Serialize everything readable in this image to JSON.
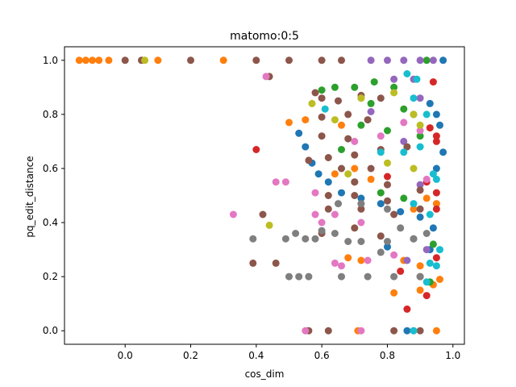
{
  "chart_data": {
    "type": "scatter",
    "title": "matomo:0:5",
    "xlabel": "cos_dim",
    "ylabel": "pq_edit_distance",
    "xlim": [
      -0.185,
      1.035
    ],
    "ylim": [
      -0.05,
      1.05
    ],
    "xticks": [
      0.0,
      0.2,
      0.4,
      0.6,
      0.8,
      1.0
    ],
    "xtick_labels": [
      "0.0",
      "0.2",
      "0.4",
      "0.6",
      "0.8",
      "1.0"
    ],
    "yticks": [
      0.0,
      0.2,
      0.4,
      0.6,
      0.8,
      1.0
    ],
    "ytick_labels": [
      "0.0",
      "0.2",
      "0.4",
      "0.6",
      "0.8",
      "1.0"
    ],
    "grid": false,
    "legend": "none",
    "palette": [
      "#1f77b4",
      "#ff7f0e",
      "#2ca02c",
      "#d62728",
      "#9467bd",
      "#8c564b",
      "#e377c2",
      "#7f7f7f",
      "#bcbd22",
      "#17becf"
    ],
    "series": [
      {
        "color": "#1f77b4",
        "points": [
          [
            0.97,
            1.0
          ],
          [
            0.93,
            0.84
          ],
          [
            0.95,
            0.8
          ],
          [
            0.96,
            0.76
          ],
          [
            0.97,
            0.66
          ],
          [
            0.95,
            0.6
          ],
          [
            0.53,
            0.73
          ],
          [
            0.55,
            0.68
          ],
          [
            0.57,
            0.62
          ],
          [
            0.59,
            0.58
          ],
          [
            0.62,
            0.55
          ],
          [
            0.66,
            0.51
          ],
          [
            0.72,
            0.49
          ],
          [
            0.78,
            0.47
          ],
          [
            0.84,
            0.44
          ],
          [
            0.9,
            0.42
          ],
          [
            0.94,
            0.38
          ],
          [
            0.88,
            0.34
          ],
          [
            0.8,
            0.31
          ],
          [
            0.93,
            0.3
          ],
          [
            0.86,
            0.0
          ]
        ]
      },
      {
        "color": "#ff7f0e",
        "points": [
          [
            -0.14,
            1.0
          ],
          [
            -0.12,
            1.0
          ],
          [
            -0.1,
            1.0
          ],
          [
            -0.08,
            1.0
          ],
          [
            -0.05,
            1.0
          ],
          [
            0.1,
            1.0
          ],
          [
            0.3,
            1.0
          ],
          [
            0.55,
            0.78
          ],
          [
            0.5,
            0.77
          ],
          [
            0.66,
            0.76
          ],
          [
            0.7,
            0.6
          ],
          [
            0.64,
            0.58
          ],
          [
            0.75,
            0.56
          ],
          [
            0.92,
            0.49
          ],
          [
            0.95,
            0.47
          ],
          [
            0.88,
            0.45
          ],
          [
            0.68,
            0.27
          ],
          [
            0.72,
            0.26
          ],
          [
            0.85,
            0.26
          ],
          [
            0.9,
            0.24
          ],
          [
            0.96,
            0.19
          ],
          [
            0.94,
            0.17
          ],
          [
            0.82,
            0.14
          ],
          [
            0.9,
            0.15
          ],
          [
            0.71,
            0.0
          ],
          [
            0.95,
            0.0
          ]
        ]
      },
      {
        "color": "#2ca02c",
        "points": [
          [
            0.92,
            1.0
          ],
          [
            0.6,
            0.89
          ],
          [
            0.64,
            0.9
          ],
          [
            0.7,
            0.9
          ],
          [
            0.76,
            0.92
          ],
          [
            0.82,
            0.9
          ],
          [
            0.75,
            0.84
          ],
          [
            0.85,
            0.82
          ],
          [
            0.88,
            0.8
          ],
          [
            0.72,
            0.76
          ],
          [
            0.8,
            0.74
          ],
          [
            0.9,
            0.72
          ],
          [
            0.66,
            0.67
          ],
          [
            0.7,
            0.55
          ],
          [
            0.78,
            0.51
          ],
          [
            0.85,
            0.49
          ],
          [
            0.93,
            0.18
          ],
          [
            0.94,
            0.32
          ]
        ]
      },
      {
        "color": "#d62728",
        "points": [
          [
            0.4,
            0.67
          ],
          [
            0.94,
            0.92
          ],
          [
            0.93,
            0.75
          ],
          [
            0.95,
            0.72
          ],
          [
            0.95,
            0.7
          ],
          [
            0.8,
            0.57
          ],
          [
            0.92,
            0.55
          ],
          [
            0.95,
            0.51
          ],
          [
            0.95,
            0.45
          ],
          [
            0.84,
            0.22
          ],
          [
            0.9,
            0.2
          ],
          [
            0.92,
            0.13
          ],
          [
            0.86,
            0.08
          ],
          [
            0.95,
            0.27
          ]
        ]
      },
      {
        "color": "#9467bd",
        "points": [
          [
            0.75,
            1.0
          ],
          [
            0.8,
            1.0
          ],
          [
            0.85,
            1.0
          ],
          [
            0.9,
            1.0
          ],
          [
            0.94,
            1.0
          ],
          [
            0.82,
            0.93
          ],
          [
            0.88,
            0.93
          ],
          [
            0.9,
            0.86
          ],
          [
            0.75,
            0.81
          ],
          [
            0.85,
            0.7
          ],
          [
            0.9,
            0.54
          ],
          [
            0.92,
            0.3
          ],
          [
            0.86,
            0.26
          ]
        ]
      },
      {
        "color": "#8c564b",
        "points": [
          [
            0.0,
            1.0
          ],
          [
            0.05,
            1.0
          ],
          [
            0.2,
            1.0
          ],
          [
            0.4,
            1.0
          ],
          [
            0.5,
            1.0
          ],
          [
            0.6,
            1.0
          ],
          [
            0.66,
            1.0
          ],
          [
            0.44,
            0.94
          ],
          [
            0.58,
            0.88
          ],
          [
            0.6,
            0.86
          ],
          [
            0.65,
            0.85
          ],
          [
            0.72,
            0.87
          ],
          [
            0.78,
            0.86
          ],
          [
            0.6,
            0.79
          ],
          [
            0.68,
            0.8
          ],
          [
            0.74,
            0.78
          ],
          [
            0.6,
            0.72
          ],
          [
            0.68,
            0.71
          ],
          [
            0.62,
            0.64
          ],
          [
            0.7,
            0.65
          ],
          [
            0.78,
            0.67
          ],
          [
            0.86,
            0.68
          ],
          [
            0.56,
            0.63
          ],
          [
            0.66,
            0.6
          ],
          [
            0.75,
            0.6
          ],
          [
            0.7,
            0.55
          ],
          [
            0.8,
            0.54
          ],
          [
            0.9,
            0.52
          ],
          [
            0.62,
            0.5
          ],
          [
            0.7,
            0.5
          ],
          [
            0.8,
            0.48
          ],
          [
            0.9,
            0.45
          ],
          [
            0.62,
            0.45
          ],
          [
            0.72,
            0.45
          ],
          [
            0.82,
            0.43
          ],
          [
            0.42,
            0.43
          ],
          [
            0.39,
            0.25
          ],
          [
            0.46,
            0.25
          ],
          [
            0.6,
            0.36
          ],
          [
            0.7,
            0.38
          ],
          [
            0.78,
            0.35
          ],
          [
            0.56,
            0.0
          ],
          [
            0.62,
            0.0
          ],
          [
            0.82,
            0.0
          ],
          [
            0.9,
            0.0
          ]
        ]
      },
      {
        "color": "#e377c2",
        "points": [
          [
            0.43,
            0.94
          ],
          [
            0.33,
            0.43
          ],
          [
            0.46,
            0.55
          ],
          [
            0.49,
            0.55
          ],
          [
            0.58,
            0.43
          ],
          [
            0.64,
            0.43
          ],
          [
            0.6,
            0.4
          ],
          [
            0.72,
            0.4
          ],
          [
            0.64,
            0.25
          ],
          [
            0.66,
            0.24
          ],
          [
            0.74,
            0.26
          ],
          [
            0.82,
            0.28
          ],
          [
            0.7,
            0.7
          ],
          [
            0.78,
            0.72
          ],
          [
            0.85,
            0.77
          ],
          [
            0.9,
            0.74
          ],
          [
            0.72,
            0.86
          ],
          [
            0.92,
            0.56
          ],
          [
            0.58,
            0.51
          ],
          [
            0.55,
            0.0
          ],
          [
            0.72,
            0.0
          ],
          [
            0.88,
            0.0
          ]
        ]
      },
      {
        "color": "#7f7f7f",
        "points": [
          [
            0.39,
            0.34
          ],
          [
            0.49,
            0.34
          ],
          [
            0.5,
            0.2
          ],
          [
            0.53,
            0.2
          ],
          [
            0.56,
            0.2
          ],
          [
            0.55,
            0.34
          ],
          [
            0.58,
            0.34
          ],
          [
            0.52,
            0.36
          ],
          [
            0.6,
            0.37
          ],
          [
            0.64,
            0.36
          ],
          [
            0.68,
            0.33
          ],
          [
            0.72,
            0.33
          ],
          [
            0.8,
            0.33
          ],
          [
            0.88,
            0.34
          ],
          [
            0.65,
            0.47
          ],
          [
            0.72,
            0.47
          ],
          [
            0.8,
            0.45
          ],
          [
            0.66,
            0.2
          ],
          [
            0.74,
            0.2
          ],
          [
            0.82,
            0.2
          ],
          [
            0.9,
            0.2
          ],
          [
            0.78,
            0.29
          ],
          [
            0.84,
            0.38
          ],
          [
            0.92,
            0.36
          ]
        ]
      },
      {
        "color": "#bcbd22",
        "points": [
          [
            0.44,
            0.39
          ],
          [
            0.06,
            1.0
          ],
          [
            0.57,
            0.84
          ],
          [
            0.64,
            0.78
          ],
          [
            0.72,
            0.86
          ],
          [
            0.82,
            0.88
          ],
          [
            0.88,
            0.8
          ],
          [
            0.9,
            0.76
          ],
          [
            0.8,
            0.62
          ],
          [
            0.88,
            0.6
          ],
          [
            0.68,
            0.58
          ]
        ]
      },
      {
        "color": "#17becf",
        "points": [
          [
            0.61,
            0.82
          ],
          [
            0.86,
            0.95
          ],
          [
            0.89,
            0.93
          ],
          [
            0.88,
            0.86
          ],
          [
            0.92,
            0.8
          ],
          [
            0.78,
            0.66
          ],
          [
            0.85,
            0.66
          ],
          [
            0.9,
            0.68
          ],
          [
            0.94,
            0.58
          ],
          [
            0.95,
            0.56
          ],
          [
            0.88,
            0.47
          ],
          [
            0.93,
            0.43
          ],
          [
            0.96,
            0.3
          ],
          [
            0.93,
            0.25
          ],
          [
            0.95,
            0.24
          ],
          [
            0.92,
            0.18
          ],
          [
            0.88,
            0.0
          ]
        ]
      }
    ]
  }
}
